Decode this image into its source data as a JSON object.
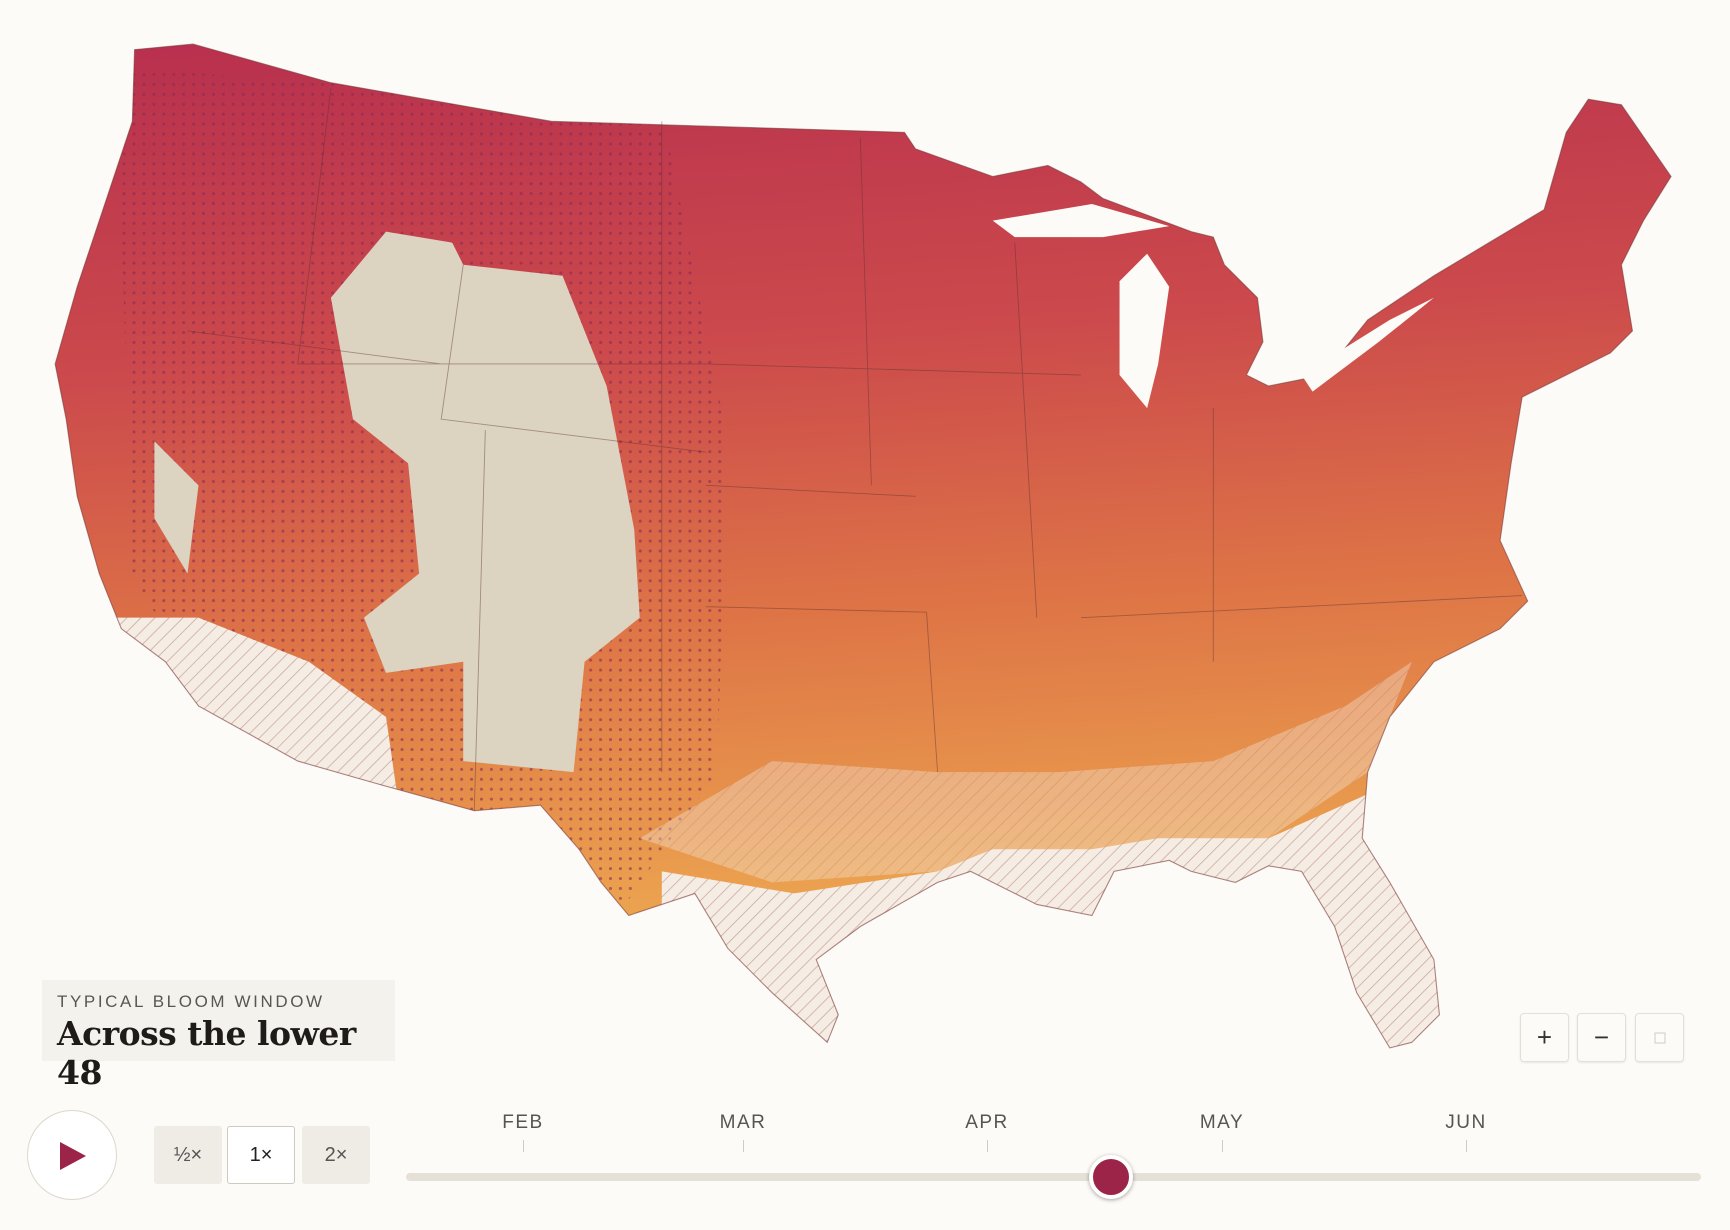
{
  "legend": {
    "eyebrow": "TYPICAL BLOOM WINDOW",
    "title": "Across the lower 48"
  },
  "zoom": {
    "zoom_in": "+",
    "zoom_out": "−"
  },
  "playback": {
    "speeds": [
      "½×",
      "1×",
      "2×"
    ]
  },
  "timeline": {
    "months": [
      "FEB",
      "MAR",
      "APR",
      "MAY",
      "JUN"
    ]
  }
}
